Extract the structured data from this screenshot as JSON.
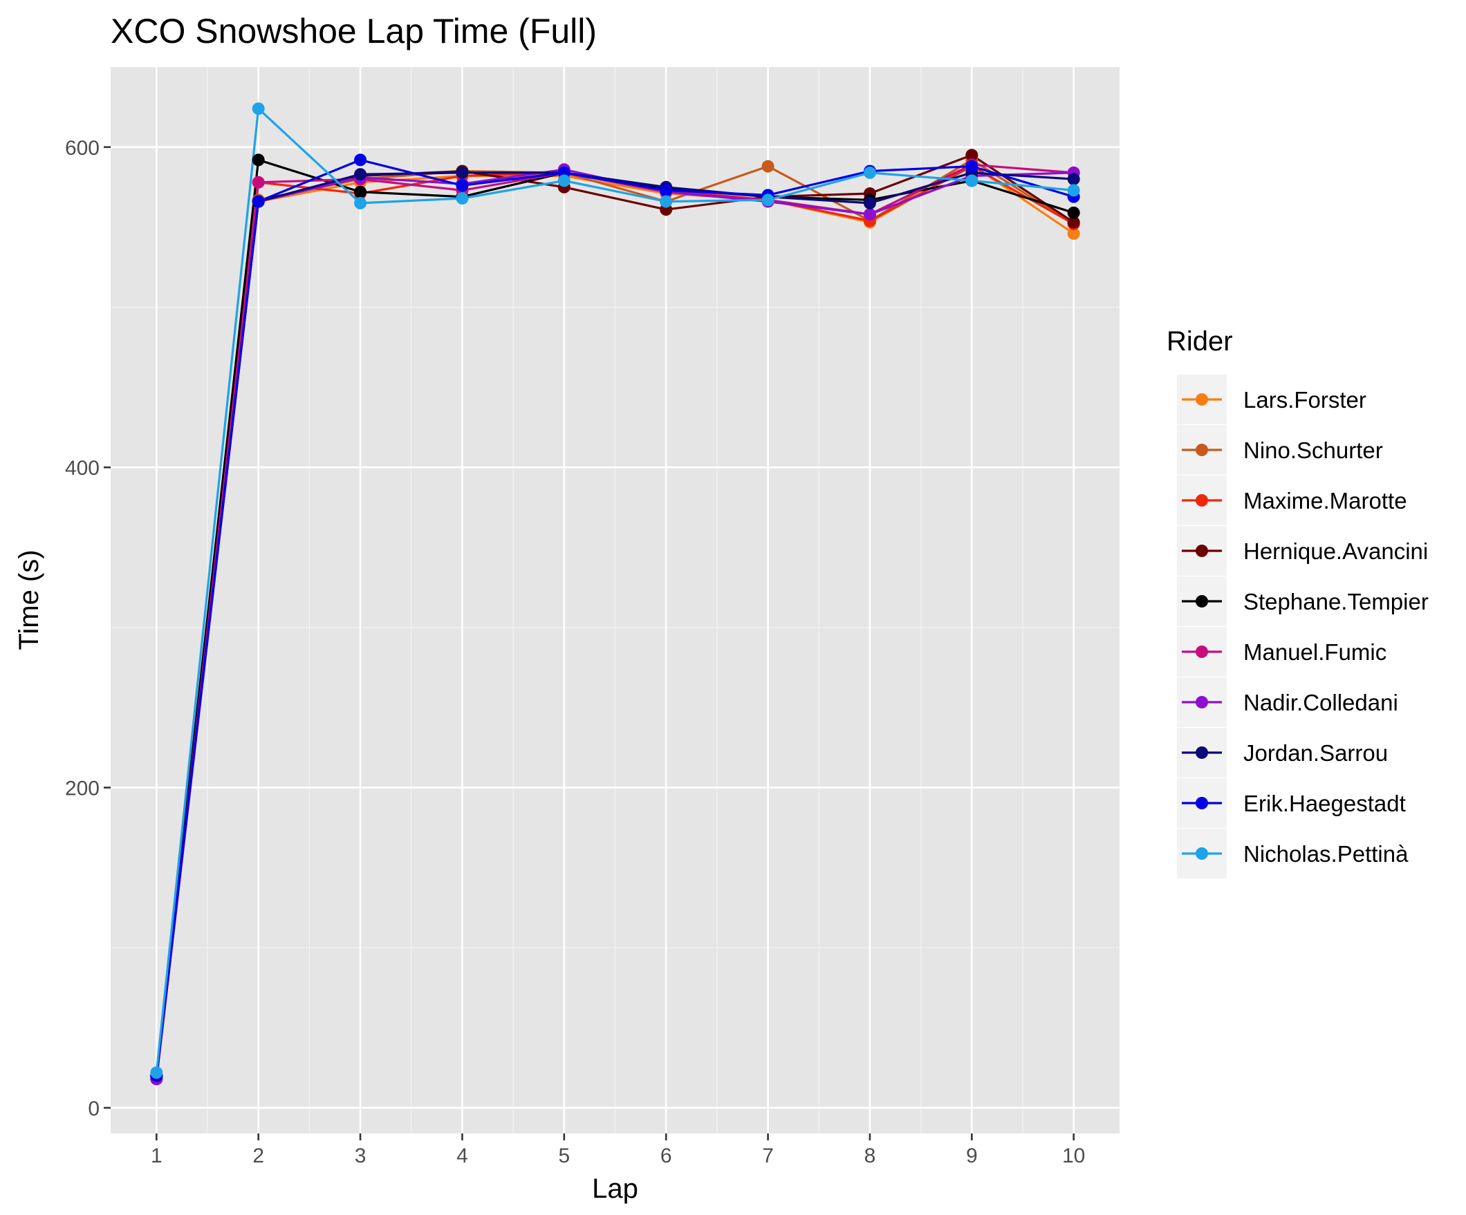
{
  "chart_data": {
    "type": "line",
    "title": "XCO Snowshoe Lap Time (Full)",
    "xlabel": "Lap",
    "ylabel": "Time (s)",
    "x": [
      1,
      2,
      3,
      4,
      5,
      6,
      7,
      8,
      9,
      10
    ],
    "xlim": [
      0.55,
      10.45
    ],
    "ylim": [
      -16,
      650
    ],
    "yticks": [
      0,
      200,
      400,
      600
    ],
    "grid": true,
    "legend_title": "Rider",
    "legend_position": "right",
    "series": [
      {
        "name": "Lars.Forster",
        "color": "#f77f12",
        "values": [
          20,
          566,
          578,
          582,
          582,
          571,
          567,
          553,
          589,
          546
        ]
      },
      {
        "name": "Nino.Schurter",
        "color": "#c75a1c",
        "values": [
          20,
          567,
          580,
          585,
          584,
          566,
          588,
          554,
          592,
          552
        ]
      },
      {
        "name": "Maxime.Marotte",
        "color": "#f0280b",
        "values": [
          20,
          578,
          571,
          582,
          584,
          573,
          567,
          554,
          588,
          552
        ]
      },
      {
        "name": "Hernique.Avancini",
        "color": "#6b0000",
        "values": [
          18,
          566,
          582,
          585,
          575,
          561,
          569,
          571,
          595,
          553
        ]
      },
      {
        "name": "Stephane.Tempier",
        "color": "#000000",
        "values": [
          20,
          592,
          572,
          569,
          584,
          574,
          569,
          567,
          579,
          559
        ]
      },
      {
        "name": "Manuel.Fumic",
        "color": "#c70d7d",
        "values": [
          18,
          578,
          580,
          573,
          584,
          572,
          567,
          558,
          589,
          584
        ]
      },
      {
        "name": "Nadir.Colledani",
        "color": "#8e0fd0",
        "values": [
          18,
          566,
          581,
          577,
          586,
          572,
          566,
          558,
          582,
          584
        ]
      },
      {
        "name": "Jordan.Sarrou",
        "color": "#0a0a7a",
        "values": [
          20,
          566,
          583,
          584,
          584,
          575,
          569,
          565,
          584,
          580
        ]
      },
      {
        "name": "Erik.Haegestadt",
        "color": "#0000e6",
        "values": [
          20,
          566,
          592,
          576,
          584,
          573,
          570,
          585,
          588,
          569
        ]
      },
      {
        "name": "Nicholas.Pettinà",
        "color": "#1ea3e8",
        "values": [
          22,
          624,
          565,
          568,
          579,
          566,
          567,
          584,
          579,
          573
        ]
      }
    ]
  }
}
